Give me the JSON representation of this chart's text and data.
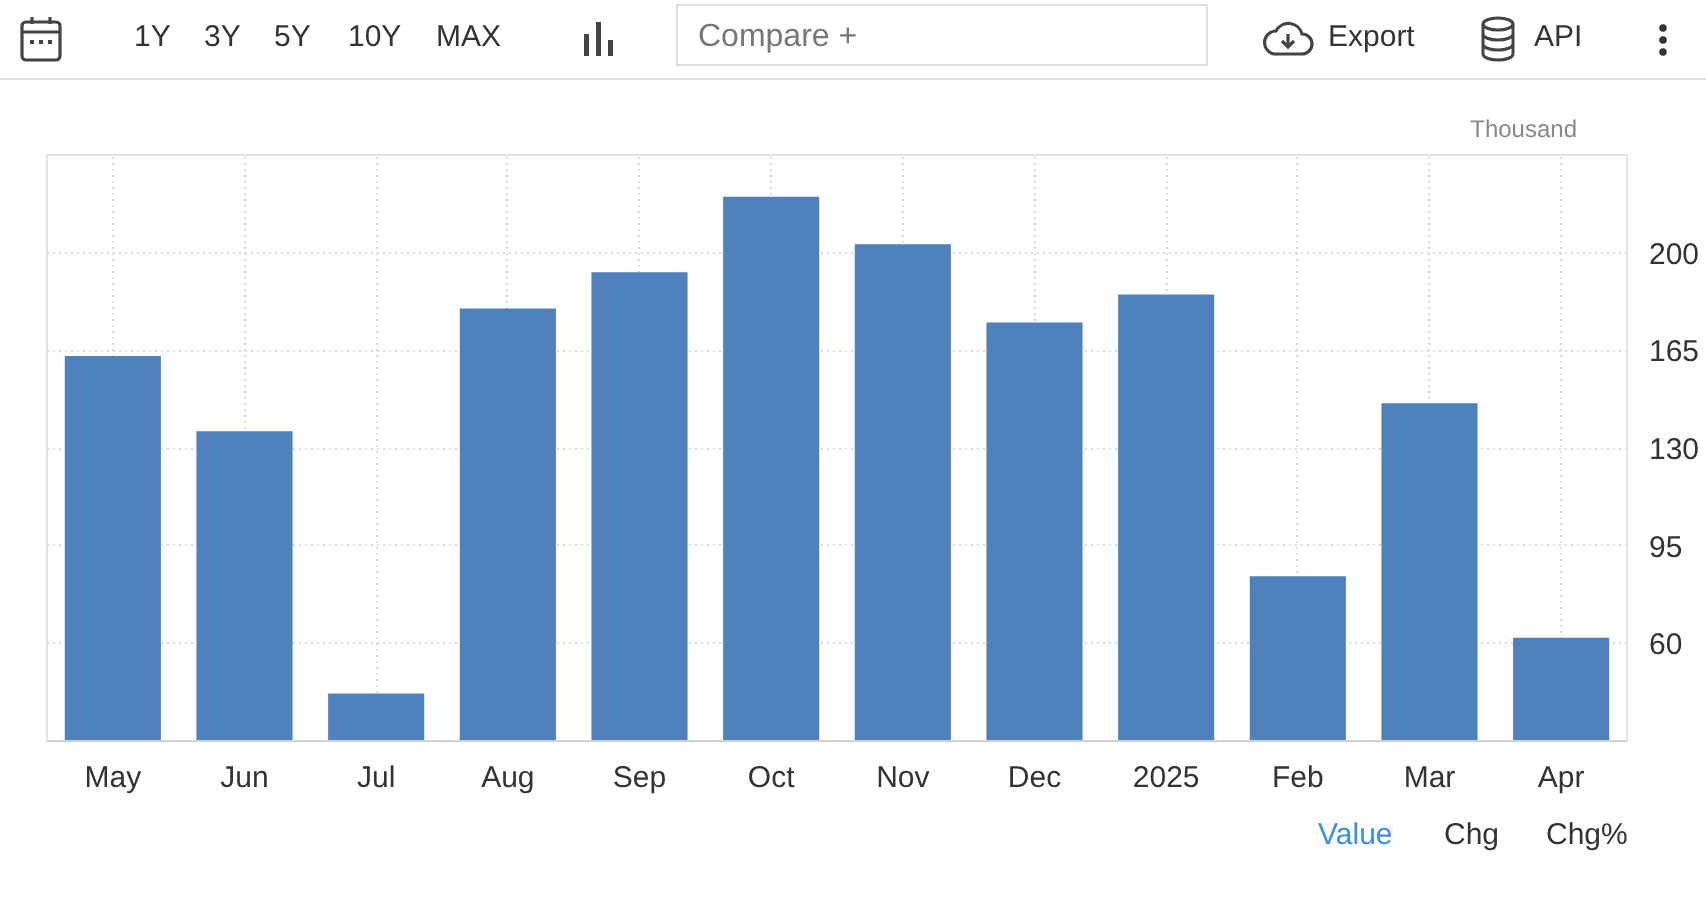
{
  "chart_data": {
    "type": "bar",
    "ylabel": "Thousand",
    "categories": [
      "May",
      "Jun",
      "Jul",
      "Aug",
      "Sep",
      "Oct",
      "Nov",
      "Dec",
      "2025",
      "Feb",
      "Mar",
      "Apr"
    ],
    "values": [
      163,
      136,
      42,
      180,
      193,
      220,
      203,
      175,
      185,
      84,
      146,
      62
    ],
    "color": "#4f81bd",
    "ylim": [
      25,
      235
    ],
    "yticks": [
      {
        "value": 25,
        "label": null
      },
      60,
      95,
      130,
      165,
      200,
      {
        "value": 235,
        "label": null
      }
    ],
    "grid": true,
    "annotations": [
      "1Y",
      "3Y",
      "5Y",
      "10Y",
      "MAX",
      "Compare +",
      "Export",
      "API",
      "Value",
      "Chg",
      "Chg%"
    ]
  }
}
